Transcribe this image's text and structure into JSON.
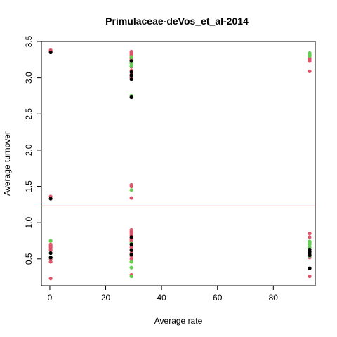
{
  "chart_data": {
    "type": "scatter",
    "title": "Primulaceae-deVos_et_al-2014",
    "xlabel": "Average rate",
    "ylabel": "Average turnover",
    "xlim": [
      -3,
      95
    ],
    "ylim": [
      0.13,
      3.5
    ],
    "x_ticks": [
      0,
      20,
      40,
      60,
      80
    ],
    "y_ticks": [
      0.5,
      1.0,
      1.5,
      2.0,
      2.5,
      3.0,
      3.5
    ],
    "x_tick_labels": [
      "0",
      "20",
      "40",
      "60",
      "80"
    ],
    "y_tick_labels": [
      "0.5",
      "1.0",
      "1.5",
      "2.0",
      "2.5",
      "3.0",
      "3.5"
    ],
    "grid": false,
    "legend": "none",
    "reference_line": {
      "y": 1.23,
      "color": "#e8696f"
    },
    "colors": {
      "black": "#000000",
      "red": "#df536b",
      "green": "#61d04f"
    },
    "series": [
      {
        "color": "red",
        "x": [
          0.3,
          0.3,
          0.3,
          0.3,
          0.3,
          0.3,
          0.3,
          0.3,
          0.3,
          0.3,
          0.3,
          29.2,
          29.2,
          29.2,
          29.2,
          29.2,
          29.2,
          29.2,
          29.2,
          29.2,
          29.2,
          29.2,
          29.2,
          29.2,
          29.2,
          29.2,
          29.2,
          29.2,
          29.2,
          29.2,
          29.2,
          29.2,
          29.2,
          29.2,
          29.2,
          29.2,
          29.2,
          29.2,
          29.2,
          29.2,
          29.2,
          29.2,
          29.2,
          93.0,
          93.0,
          93.0,
          93.0,
          93.0,
          93.0,
          93.0,
          93.0,
          93.0
        ],
        "y": [
          3.38,
          3.36,
          1.36,
          0.7,
          0.68,
          0.66,
          0.64,
          0.62,
          0.5,
          0.46,
          0.23,
          3.36,
          3.34,
          3.32,
          3.3,
          3.28,
          3.26,
          3.24,
          3.2,
          3.15,
          3.1,
          3.05,
          3.0,
          1.52,
          1.5,
          1.34,
          0.9,
          0.88,
          0.86,
          0.84,
          0.82,
          0.8,
          0.78,
          0.76,
          0.74,
          0.7,
          0.66,
          0.62,
          0.58,
          0.54,
          0.5,
          0.46,
          0.28,
          3.27,
          3.25,
          3.23,
          3.09,
          0.85,
          0.8,
          0.56,
          0.52,
          0.26
        ]
      },
      {
        "color": "green",
        "x": [
          0.3,
          0.3,
          0.3,
          29.2,
          29.2,
          29.2,
          29.2,
          29.2,
          29.2,
          29.2,
          29.2,
          29.2,
          29.2,
          93.0,
          93.0,
          93.0,
          93.0,
          93.0,
          93.0,
          93.0,
          93.0,
          93.0,
          93.0
        ],
        "y": [
          0.75,
          0.58,
          0.52,
          3.28,
          3.2,
          3.16,
          2.75,
          1.45,
          0.72,
          0.56,
          0.46,
          0.38,
          0.26,
          3.34,
          3.32,
          3.3,
          0.74,
          0.72,
          0.7,
          0.66,
          0.6,
          0.58,
          0.54
        ]
      },
      {
        "color": "black",
        "x": [
          0.3,
          0.3,
          0.3,
          0.3,
          29.2,
          29.2,
          29.2,
          29.2,
          29.2,
          29.2,
          29.2,
          29.2,
          29.2,
          93.0,
          93.0,
          93.0,
          93.0,
          93.0
        ],
        "y": [
          3.35,
          1.33,
          0.58,
          0.52,
          3.23,
          3.08,
          3.03,
          2.98,
          2.73,
          0.8,
          0.7,
          0.62,
          0.56,
          0.63,
          0.6,
          0.58,
          0.55,
          0.37
        ]
      }
    ]
  }
}
